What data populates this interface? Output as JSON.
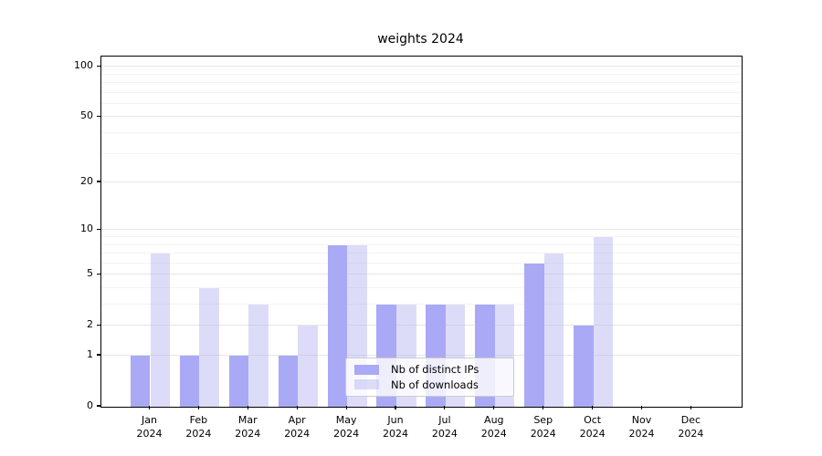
{
  "colors": {
    "distinct_ips": "#a9a9f6",
    "downloads": "rgba(177,177,242,0.45)",
    "grid_major": "#e6e6e6",
    "grid_minor": "#f3f3f3",
    "axis": "#000000",
    "legend_border": "#cccccc",
    "legend_background": "rgba(255,255,255,0.8)"
  },
  "chart_data": {
    "type": "bar",
    "title": "weights 2024",
    "categories": [
      "Jan",
      "Feb",
      "Mar",
      "Apr",
      "May",
      "Jun",
      "Jul",
      "Aug",
      "Sep",
      "Oct",
      "Nov",
      "Dec"
    ],
    "year_label": "2024",
    "series": [
      {
        "name": "Nb of distinct IPs",
        "color": "#a9a9f6",
        "values": [
          1,
          1,
          1,
          1,
          8,
          3,
          3,
          3,
          6,
          2,
          0,
          0
        ]
      },
      {
        "name": "Nb of downloads",
        "color": "rgba(177,177,242,0.45)",
        "values": [
          7,
          4,
          3,
          2,
          8,
          3,
          3,
          3,
          7,
          9,
          0,
          0
        ]
      }
    ],
    "yticks": [
      0,
      1,
      2,
      5,
      10,
      20,
      50,
      100
    ],
    "yscale": "log10(1+v)",
    "ylim": [
      0,
      115
    ],
    "xlabel": "",
    "ylabel": "",
    "grid": "horizontal major and minor",
    "legend_position": "lower center"
  }
}
